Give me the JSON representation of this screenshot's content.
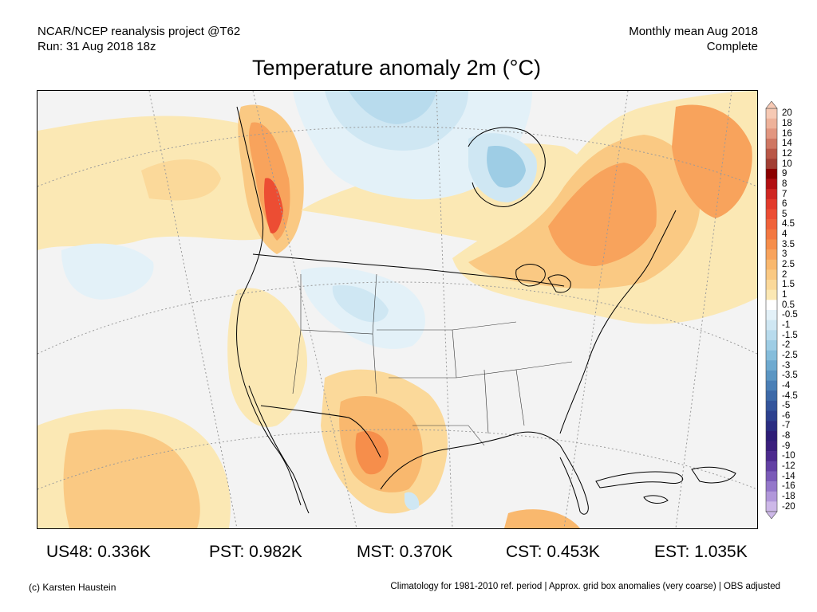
{
  "header": {
    "line1_left": "NCAR/NCEP reanalysis project @T62",
    "line2_left": "Run: 31 Aug 2018 18z",
    "line1_right": "Monthly mean Aug 2018",
    "line2_right": "Complete"
  },
  "title": "Temperature anomaly 2m (°C)",
  "colorbar": {
    "labels": [
      "20",
      "18",
      "16",
      "14",
      "12",
      "10",
      "9",
      "8",
      "7",
      "6",
      "5",
      "4.5",
      "4",
      "3.5",
      "3",
      "2.5",
      "2",
      "1.5",
      "1",
      "0.5",
      "-0.5",
      "-1",
      "-1.5",
      "-2",
      "-2.5",
      "-3",
      "-3.5",
      "-4",
      "-4.5",
      "-5",
      "-6",
      "-7",
      "-8",
      "-9",
      "-10",
      "-12",
      "-14",
      "-16",
      "-18",
      "-20"
    ],
    "colors": [
      "#f6c9b4",
      "#eeb29a",
      "#e29680",
      "#cf7763",
      "#b95747",
      "#a23e33",
      "#8b0000",
      "#b20f12",
      "#cf2622",
      "#e23a2b",
      "#ec4d33",
      "#f0623a",
      "#f37841",
      "#f68e4b",
      "#f8a35c",
      "#f9b86e",
      "#fac983",
      "#fbd99a",
      "#fbe8b4",
      "#ffffff",
      "#e3f1f8",
      "#cfe7f3",
      "#b8dbed",
      "#9ecde5",
      "#85bddb",
      "#6eaad0",
      "#5b96c3",
      "#4a7fb6",
      "#3d69a8",
      "#33549b",
      "#2c408e",
      "#2a2d82",
      "#2d1d77",
      "#3a1f7d",
      "#4c2a8e",
      "#6240a4",
      "#7a5ab8",
      "#9477ca",
      "#b197da",
      "#cdb8e8"
    ]
  },
  "stats": [
    {
      "label": "US48: 0.336K"
    },
    {
      "label": "PST: 0.982K"
    },
    {
      "label": "MST: 0.370K"
    },
    {
      "label": "CST: 0.453K"
    },
    {
      "label": "EST: 1.035K"
    }
  ],
  "footer": {
    "left": "(c) Karsten Haustein",
    "right": "Climatology for 1981-2010 ref. period | Approx. grid box anomalies (very coarse) | OBS adjusted"
  },
  "map": {
    "background": "#f3f3f3",
    "warm_colors": [
      "#fbe8b4",
      "#fbd99a",
      "#fac983",
      "#f9b86e",
      "#f8a35c",
      "#f68e4b",
      "#ec4d33",
      "#cf2622"
    ],
    "cool_colors": [
      "#e3f1f8",
      "#cfe7f3",
      "#b8dbed",
      "#9ecde5",
      "#85bddb"
    ]
  }
}
